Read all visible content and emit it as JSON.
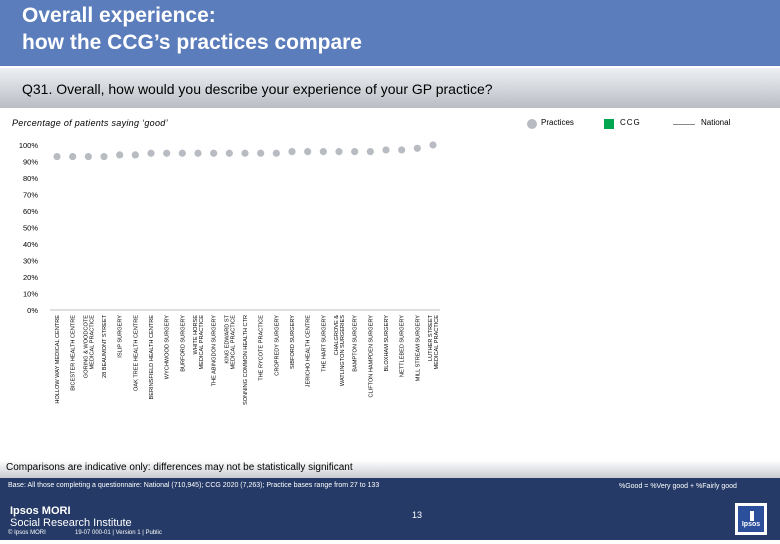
{
  "header": {
    "title_line1": "Overall experience:",
    "title_line2": "how the CCG’s practices compare"
  },
  "question": "Q31. Overall, how would you describe your experience of your GP practice?",
  "legend": {
    "practices": "Practices",
    "ccg": "CCG",
    "national": "National"
  },
  "colors": {
    "header": "#5b7dbb",
    "practices": "#b8bcc2",
    "ccg": "#00a650",
    "national": "#8a8a8a",
    "footer": "#253a66"
  },
  "chart_data": {
    "type": "scatter",
    "title": "Percentage of patients saying ‘good’",
    "xlabel": "",
    "ylabel": "",
    "ylim": [
      0,
      100
    ],
    "yticks": [
      "0%",
      "10%",
      "20%",
      "30%",
      "40%",
      "50%",
      "60%",
      "70%",
      "80%",
      "90%",
      "100%"
    ],
    "categories": [
      "HOLLOW WAY MEDICAL CENTRE",
      "BICESTER HEALTH CENTRE",
      "GORING & WOODCOTE MEDICAL PRACTICE",
      "28 BEAUMONT STREET",
      "ISLIP SURGERY",
      "OAK TREE HEALTH CENTRE",
      "BERINSFIELD HEALTH CENTRE",
      "WYCHWOOD SURGERY",
      "BURFORD SURGERY",
      "WHITE HORSE MEDICAL PRACTICE",
      "THE ABINGDON SURGERY",
      "KING EDWARD ST MEDICAL PRACTICE",
      "SONNING COMMON HEALTH CTR",
      "THE RYCOTE PRACTICE",
      "CROPREDY SURGERY",
      "SIBFORD SURGERY",
      "JERICHO HEALTH CENTRE",
      "THE HART SURGERY",
      "CHALGROVE & WATLINGTON SURGERIES",
      "BAMPTON SURGERY",
      "CLIFTON HAMPDEN SURGERY",
      "BLOXHAM SURGERY",
      "NETTLEBED SURGERY",
      "MILL STREAM SURGERY",
      "LUTHER STREET MEDICAL PRACTICE"
    ],
    "series": [
      {
        "name": "Practices",
        "values": [
          93,
          93,
          93,
          93,
          94,
          94,
          95,
          95,
          95,
          95,
          95,
          95,
          95,
          95,
          95,
          96,
          96,
          96,
          96,
          96,
          96,
          97,
          97,
          98,
          100
        ]
      }
    ],
    "grid": false
  },
  "footer": {
    "comparisons": "Comparisons are indicative only: differences may not be statistically significant",
    "base": "Base: All those completing a questionnaire: National (710,945); CCG 2020 (7,263); Practice bases range from 27 to 133",
    "good_note": "%Good = %Very good + %Fairly good",
    "org_line1": "Ipsos MORI",
    "org_line2": "Social Research Institute",
    "page_number": "13",
    "copyright": "© Ipsos MORI",
    "job_ref": "19-07 000-01 | Version 1 | Public",
    "logo_text": "Ipsos"
  }
}
